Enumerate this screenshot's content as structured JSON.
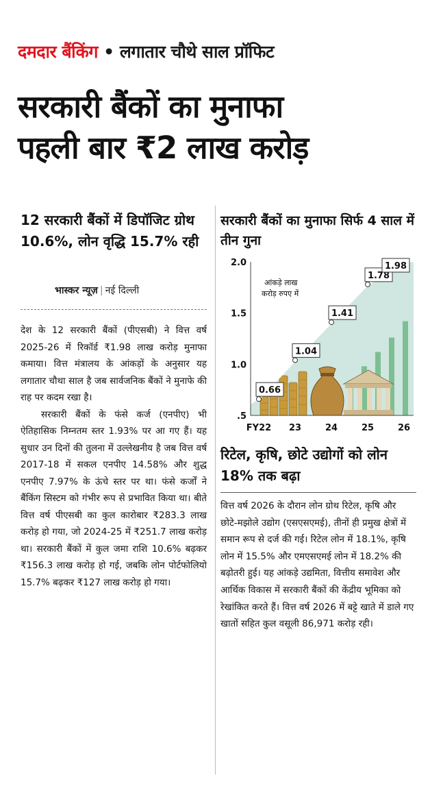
{
  "kicker": {
    "tag": "दमदार बैंकिंग",
    "bullet": "•",
    "text": "लगातार चौथे साल प्रॉफिट"
  },
  "headline": {
    "line1": "सरकारी बैंकों का मुनाफा",
    "line2": "पहली बार ₹2 लाख करोड़"
  },
  "left": {
    "deck": "12 सरकारी बैंकों में डिपॉजिट ग्रोथ 10.6%, लोन वृद्धि 15.7% रही",
    "byline_source": "भास्कर न्यूज़",
    "byline_sep": "|",
    "byline_city": "नई दिल्ली",
    "para1": "देश के 12 सरकारी बैंकों (पीएसबी) ने वित्त वर्ष 2025-26 में रिकॉर्ड ₹1.98 लाख करोड़ मुनाफा कमाया। वित्त मंत्रालय के आंकड़ों के अनुसार यह लगातार चौथा साल है जब सार्वजनिक बैंकों ने मुनाफे की राह पर कदम रखा है।",
    "para2": "सरकारी बैंकों के फंसे कर्ज (एनपीए) भी ऐतिहासिक निम्नतम स्तर 1.93% पर आ गए हैं। यह सुधार उन दिनों की तुलना में उल्लेखनीय है जब वित्त वर्ष 2017-18 में सकल एनपीए 14.58% और शुद्ध एनपीए 7.97% के ऊंचे स्तर पर था। फंसे कर्जों ने बैंकिंग सिस्टम को गंभीर रूप से प्रभावित किया था। बीते वित्त वर्ष पीएसबी का कुल कारोबार ₹283.3 लाख करोड़ हो गया, जो 2024-25 में ₹251.7 लाख करोड़ था। सरकारी बैंकों में कुल जमा राशि 10.6% बढ़कर ₹156.3 लाख करोड़ हो गई, जबकि लोन पोर्टफोलियो 15.7% बढ़कर ₹127 लाख करोड़ हो गया।"
  },
  "chart_data": {
    "type": "line",
    "title": "सरकारी बैंकों का मुनाफा सिर्फ 4 साल में तीन गुना",
    "unit_note": "आंकड़े लाख करोड़ रुपए में",
    "categories": [
      "FY22",
      "23",
      "24",
      "25",
      "26"
    ],
    "values": [
      0.66,
      1.04,
      1.41,
      1.78,
      1.98
    ],
    "value_labels": [
      "0.66",
      "1.04",
      "1.41",
      "1.78",
      "1.98"
    ],
    "y_ticks": [
      ".5",
      "1.0",
      "1.5",
      "2.0"
    ],
    "ylim": [
      0.5,
      2.0
    ],
    "grid": false,
    "colors": {
      "area": "#cfe6e1",
      "line": "#ffffff",
      "bars": "#6fb784",
      "label_border": "#333333"
    }
  },
  "right": {
    "deck": "रिटेल, कृषि, छोटे उद्योगों को लोन 18% तक बढ़ा",
    "para1": "वित्त वर्ष 2026 के दौरान लोन ग्रोथ रिटेल, कृषि और छोटे-मझोले उद्योग (एसएसएमई), तीनों ही प्रमुख क्षेत्रों में समान रूप से दर्ज की गई। रिटेल लोन में 18.1%, कृषि लोन में 15.5% और एमएसएमई लोन में 18.2% की बढ़ोतरी हुई। यह आंकड़े उद्यमिता, वित्तीय समावेश और आर्थिक विकास में सरकारी बैंकों की केंद्रीय भूमिका को रेखांकित करते हैं। वित्त वर्ष 2026 में बट्टे खाते में डाले गए खातों सहित कुल वसूली 86,971 करोड़ रही।"
  }
}
